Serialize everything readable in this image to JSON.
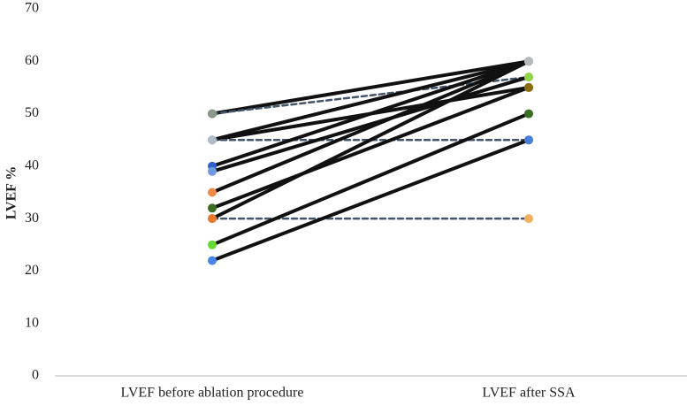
{
  "chart_data": {
    "type": "slope",
    "y_label": "LVEF %",
    "categories": [
      "LVEF before ablation procedure",
      "LVEF after SSA"
    ],
    "ylim": [
      0,
      70
    ],
    "yticks": [
      0,
      10,
      20,
      30,
      40,
      50,
      60,
      70
    ],
    "grid": false,
    "series": [
      {
        "values": [
          50,
          60
        ],
        "color": "#111111",
        "dashed": false,
        "marker_colors": [
          "#3d6b22",
          "#b5bbbb"
        ]
      },
      {
        "values": [
          50,
          57
        ],
        "color": "#44546a",
        "dashed": true,
        "marker_colors": [
          "#8a9a8a",
          "#8fd44a"
        ]
      },
      {
        "values": [
          45,
          60
        ],
        "color": "#111111",
        "dashed": false,
        "marker_colors": [
          "#b0bcc8",
          "#b5bbbb"
        ]
      },
      {
        "values": [
          45,
          55
        ],
        "color": "#111111",
        "dashed": false,
        "marker_colors": [
          "#b0bcc8",
          "#8a6d10"
        ]
      },
      {
        "values": [
          45,
          45
        ],
        "color": "#44546a",
        "dashed": true,
        "marker_colors": [
          "#b0bcc8",
          "#4a7fd8"
        ]
      },
      {
        "values": [
          40,
          60
        ],
        "color": "#111111",
        "dashed": false,
        "marker_colors": [
          "#2e5fd0",
          "#b5bbbb"
        ]
      },
      {
        "values": [
          39,
          57
        ],
        "color": "#111111",
        "dashed": false,
        "marker_colors": [
          "#6e9be0",
          "#8fd44a"
        ]
      },
      {
        "values": [
          35,
          60
        ],
        "color": "#111111",
        "dashed": false,
        "marker_colors": [
          "#f08a4b",
          "#b5bbbb"
        ]
      },
      {
        "values": [
          32,
          55
        ],
        "color": "#111111",
        "dashed": false,
        "marker_colors": [
          "#3b6e22",
          "#8a6d10"
        ]
      },
      {
        "values": [
          30,
          60
        ],
        "color": "#111111",
        "dashed": false,
        "marker_colors": [
          "#e87a30",
          "#b5bbbb"
        ]
      },
      {
        "values": [
          30,
          30
        ],
        "color": "#44546a",
        "dashed": true,
        "marker_colors": [
          "#e87a30",
          "#f0b060"
        ]
      },
      {
        "values": [
          25,
          50
        ],
        "color": "#111111",
        "dashed": false,
        "marker_colors": [
          "#66d932",
          "#3b6e22"
        ]
      },
      {
        "values": [
          22,
          45
        ],
        "color": "#111111",
        "dashed": false,
        "marker_colors": [
          "#4a86e8",
          "#4a7fd8"
        ]
      }
    ]
  }
}
